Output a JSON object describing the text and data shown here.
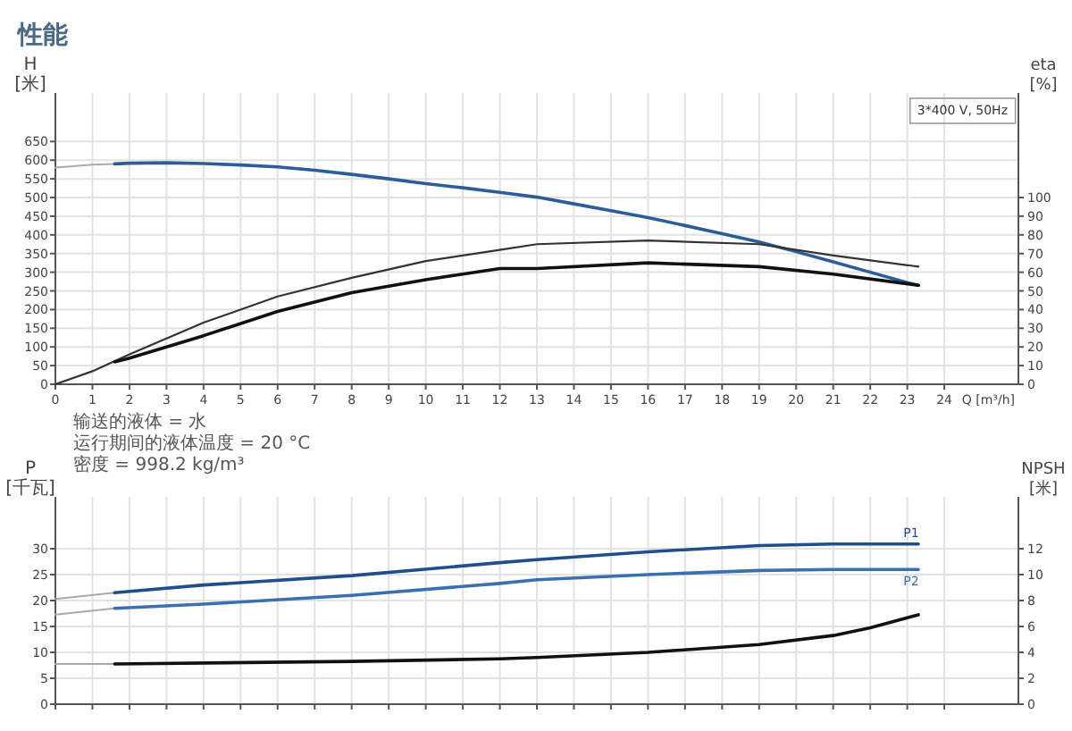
{
  "chart_data": [
    {
      "type": "line",
      "title": "性能",
      "xlabel": "Q [m³/h]",
      "ylabel": "H [米]",
      "y2label": "eta [%]",
      "xlim": [
        0,
        26
      ],
      "xticks": [
        0,
        1,
        2,
        3,
        4,
        5,
        6,
        7,
        8,
        9,
        10,
        11,
        12,
        13,
        14,
        15,
        16,
        17,
        18,
        19,
        20,
        21,
        22,
        23,
        24
      ],
      "ylim": [
        0,
        780
      ],
      "yticks": [
        0,
        50,
        100,
        150,
        200,
        250,
        300,
        350,
        400,
        450,
        500,
        550,
        600,
        650
      ],
      "y2lim": [
        0,
        156
      ],
      "y2ticks": [
        0,
        10,
        20,
        30,
        40,
        50,
        60,
        70,
        80,
        90,
        100
      ],
      "grid": true,
      "annotations": [
        "3*400 V, 50Hz",
        "输送的液体 = 水",
        "运行期间的液体温度 = 20 °C",
        "密度 = 998.2 kg/m³"
      ],
      "series": [
        {
          "color": "#aaaaaa",
          "x": [
            0,
            1,
            1.6
          ],
          "values": [
            580,
            588,
            590
          ]
        },
        {
          "color": "#2a5d9a",
          "x": [
            1.6,
            2,
            3,
            4,
            5,
            6,
            7,
            8,
            9,
            10,
            11,
            12,
            13,
            14,
            15,
            16,
            17,
            18,
            19,
            20,
            21,
            22,
            23,
            23.3
          ],
          "values": [
            590,
            592,
            593,
            591,
            587,
            582,
            573,
            562,
            550,
            537,
            526,
            514,
            501,
            483,
            465,
            446,
            425,
            403,
            381,
            355,
            328,
            300,
            272,
            265
          ]
        },
        {
          "color": "#333333",
          "axis": "y2",
          "x": [
            0,
            1,
            2,
            4,
            6,
            8,
            10,
            12,
            13,
            16,
            19,
            21,
            23.3
          ],
          "values": [
            0,
            7,
            16,
            33,
            47,
            57,
            66,
            72,
            75,
            77,
            75,
            69,
            63
          ]
        },
        {
          "color": "#111111",
          "axis": "y2",
          "x": [
            1.6,
            2,
            4,
            6,
            8,
            10,
            12,
            13,
            16,
            19,
            21,
            23.3
          ],
          "values": [
            12,
            14,
            26,
            39,
            49,
            56,
            62,
            62,
            65,
            63,
            59,
            53
          ]
        }
      ]
    },
    {
      "type": "line",
      "ylabel": "P [千瓦]",
      "y2label": "NPSH [米]",
      "xlim": [
        0,
        26
      ],
      "xticks": [
        0,
        1,
        2,
        3,
        4,
        5,
        6,
        7,
        8,
        9,
        10,
        11,
        12,
        13,
        14,
        15,
        16,
        17,
        18,
        19,
        20,
        21,
        22,
        23,
        24
      ],
      "ylim": [
        0,
        40
      ],
      "yticks": [
        0,
        5,
        10,
        15,
        20,
        25,
        30
      ],
      "y2lim": [
        0,
        16
      ],
      "y2ticks": [
        0,
        2,
        4,
        6,
        8,
        10,
        12
      ],
      "grid": true,
      "tick_labels": "y",
      "series": [
        {
          "color": "#aaaaaa",
          "x": [
            0,
            1.6
          ],
          "values": [
            20.3,
            21.5
          ]
        },
        {
          "name": "P1",
          "color": "#1f4e8c",
          "x": [
            1.6,
            4,
            8,
            12,
            13,
            16,
            19,
            21,
            23.3
          ],
          "values": [
            21.5,
            23,
            24.8,
            27.3,
            27.9,
            29.4,
            30.6,
            30.9,
            30.9
          ]
        },
        {
          "color": "#aaaaaa",
          "x": [
            0,
            1.6
          ],
          "values": [
            17.3,
            18.5
          ]
        },
        {
          "name": "P2",
          "color": "#3a70b0",
          "x": [
            1.6,
            4,
            8,
            12,
            13,
            16,
            19,
            21,
            23.3
          ],
          "values": [
            18.5,
            19.3,
            21,
            23.3,
            24,
            25,
            25.8,
            26,
            26
          ]
        },
        {
          "color": "#aaaaaa",
          "axis": "y2",
          "x": [
            0,
            1.6
          ],
          "values": [
            3.1,
            3.1
          ]
        },
        {
          "color": "#111111",
          "axis": "y2",
          "x": [
            1.6,
            8,
            12,
            13,
            16,
            19,
            21,
            22,
            23.3
          ],
          "values": [
            3.1,
            3.3,
            3.5,
            3.6,
            4.0,
            4.6,
            5.3,
            5.9,
            6.9
          ]
        }
      ]
    }
  ]
}
